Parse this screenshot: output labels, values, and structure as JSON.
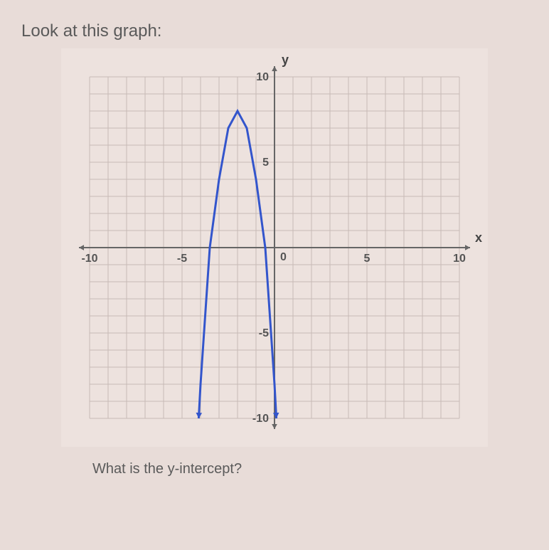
{
  "prompt": "Look at this graph:",
  "question": "What is the y-intercept?",
  "chart": {
    "type": "line",
    "x_axis": {
      "label": "x",
      "min": -10,
      "max": 10,
      "tick_step": 1,
      "labeled_ticks": [
        -10,
        -5,
        0,
        5,
        10
      ]
    },
    "y_axis": {
      "label": "y",
      "min": -10,
      "max": 10,
      "tick_step": 1,
      "labeled_ticks": [
        -10,
        -5,
        5,
        10
      ]
    },
    "curve": {
      "color": "#3355cc",
      "width": 3,
      "vertex": {
        "x": -2,
        "y": 8
      },
      "points": [
        {
          "x": -4.1,
          "y": -10
        },
        {
          "x": -4,
          "y": -8
        },
        {
          "x": -3.5,
          "y": 0
        },
        {
          "x": -3,
          "y": 4
        },
        {
          "x": -2.5,
          "y": 7
        },
        {
          "x": -2,
          "y": 8
        },
        {
          "x": -1.5,
          "y": 7
        },
        {
          "x": -1,
          "y": 4
        },
        {
          "x": -0.5,
          "y": 0
        },
        {
          "x": 0,
          "y": -8
        },
        {
          "x": 0.1,
          "y": -10
        }
      ]
    },
    "grid_color": "#c8bab6",
    "axis_color": "#666666",
    "background_color": "#ede2de"
  }
}
